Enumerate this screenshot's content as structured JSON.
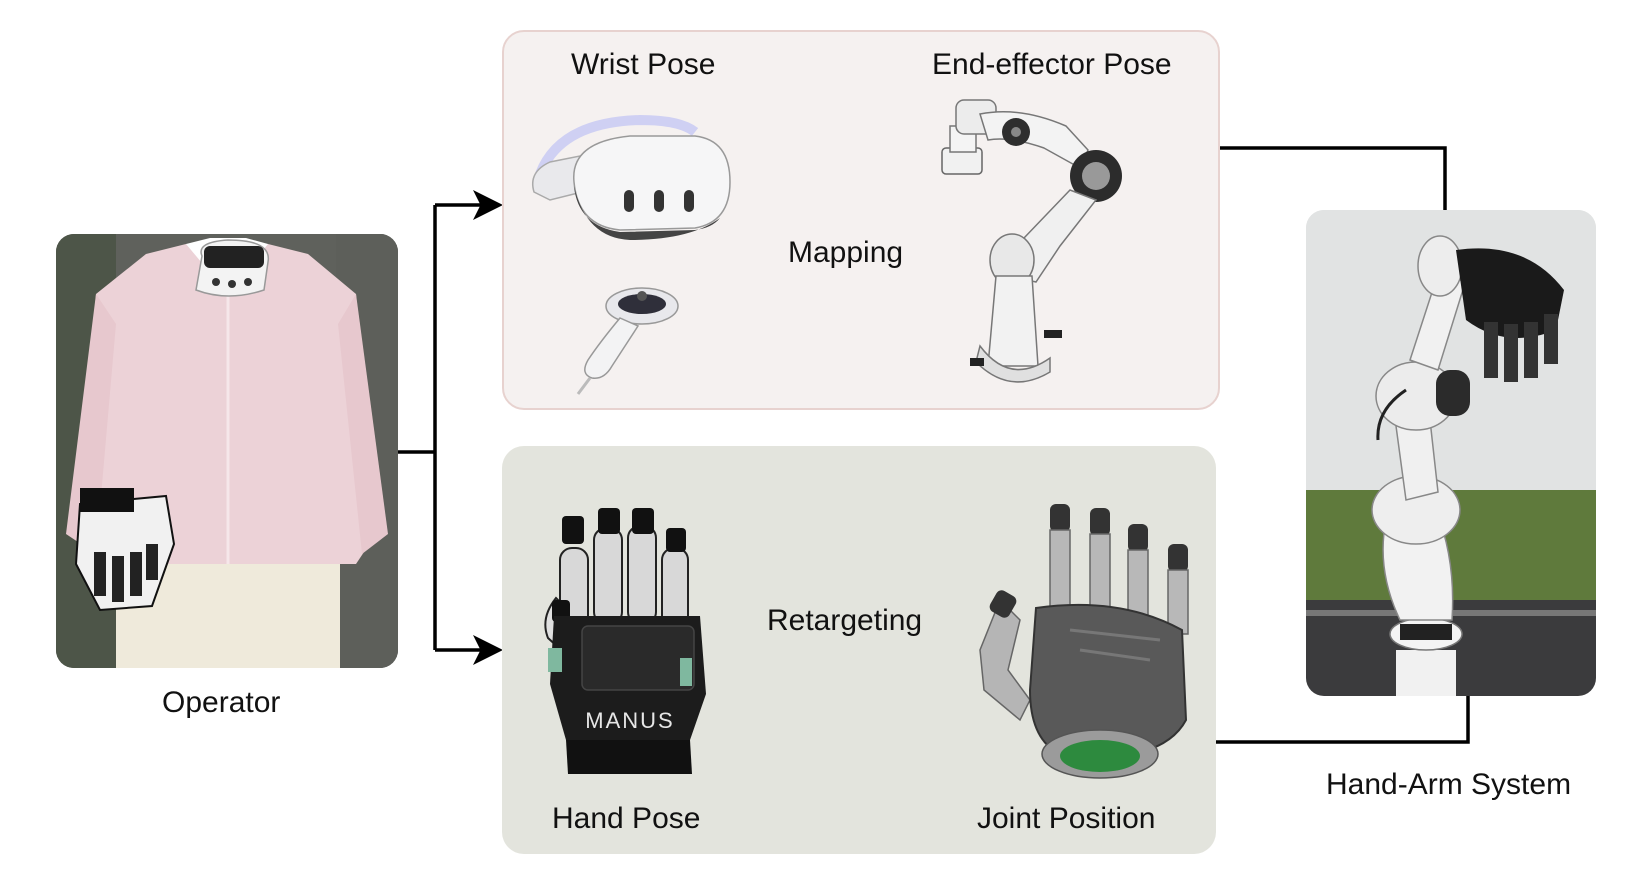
{
  "labels": {
    "wrist_pose": "Wrist Pose",
    "end_effector_pose": "End-effector Pose",
    "mapping": "Mapping",
    "hand_pose": "Hand Pose",
    "joint_position": "Joint Position",
    "retargeting": "Retargeting",
    "operator": "Operator",
    "hand_arm_system": "Hand-Arm System",
    "glove_brand": "MANUS"
  },
  "colors": {
    "top_panel_fill": "#f5f1f0",
    "top_panel_border": "#e7d2cf",
    "bottom_panel_fill": "#e3e4dd",
    "arrow": "#000000"
  },
  "icons": {
    "vr_headset": "vr-headset-icon",
    "vr_controller": "vr-controller-icon",
    "robot_arm": "robot-arm-icon",
    "data_glove": "data-glove-icon",
    "robot_hand": "robot-hand-icon"
  }
}
